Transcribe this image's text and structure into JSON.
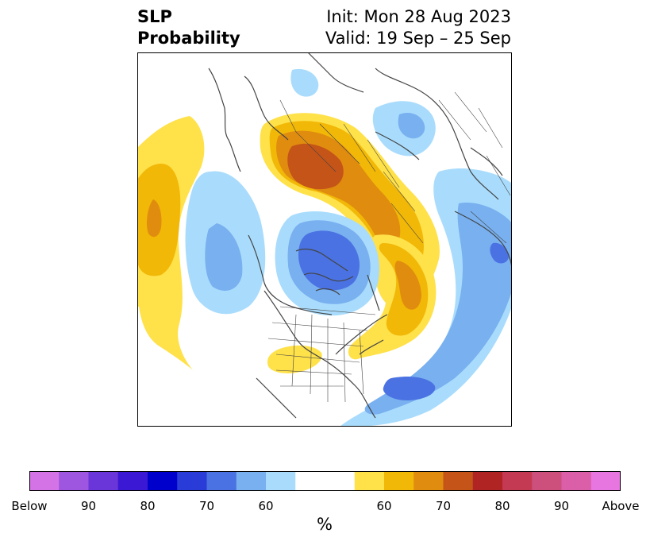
{
  "title": {
    "left_line1": "SLP",
    "left_line2": "Probability",
    "right_line1": "Init: Mon 28 Aug 2023",
    "right_line2": "Valid: 19 Sep – 25 Sep"
  },
  "colorbar": {
    "label": "%",
    "colors": [
      "#d473e6",
      "#9e55e0",
      "#6a35d9",
      "#3a18d4",
      "#0000cc",
      "#2a3cd8",
      "#4a72e2",
      "#78b0f0",
      "#a9dcfc",
      "#ffffff",
      "#ffffff",
      "#ffe14a",
      "#f2b807",
      "#e08c0f",
      "#c45417",
      "#b02424",
      "#c43a52",
      "#cc4f7c",
      "#db5ea8",
      "#e776e0"
    ],
    "tick_labels": [
      "Below",
      "90",
      "80",
      "70",
      "60",
      "60",
      "70",
      "80",
      "90",
      "Above"
    ]
  },
  "map": {
    "projection": "north-polar-stereographic",
    "colors": {
      "light_blue": "#a9dcfc",
      "mid_blue": "#78b0f0",
      "dark_blue": "#4a72e2",
      "yellow": "#ffe14a",
      "gold": "#f2b807",
      "orange": "#e08c0f",
      "rust": "#c45417",
      "coast": "#444444"
    }
  }
}
